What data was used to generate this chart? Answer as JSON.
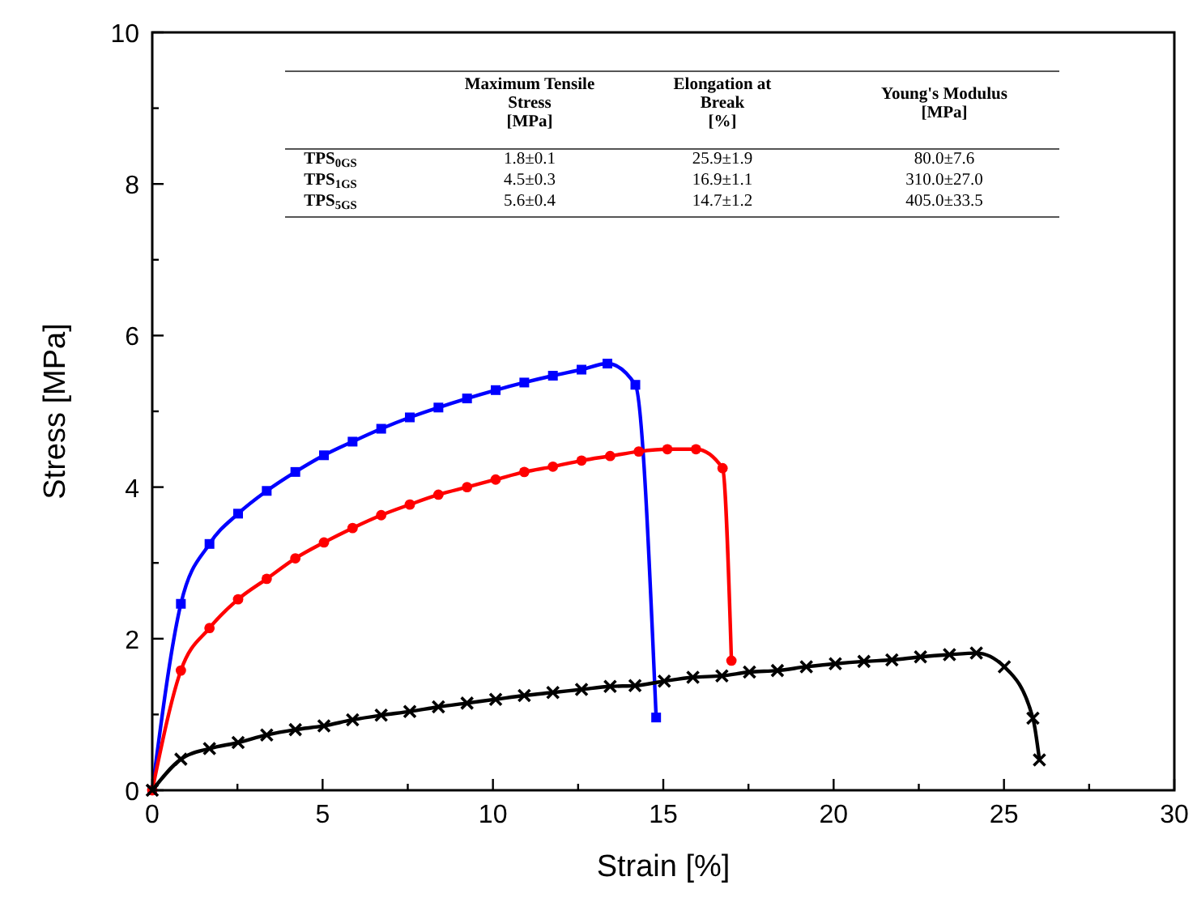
{
  "chart_data": {
    "type": "line",
    "xlabel": "Strain [%]",
    "ylabel": "Stress [MPa]",
    "xlim": [
      0,
      30
    ],
    "ylim": [
      0,
      10
    ],
    "xticks": [
      0,
      {
        "value": 2.5,
        "label": null
      },
      5,
      {
        "value": 7.5,
        "label": null
      },
      10,
      {
        "value": 12.5,
        "label": null
      },
      15,
      {
        "value": 17.5,
        "label": null
      },
      20,
      {
        "value": 22.5,
        "label": null
      },
      25,
      {
        "value": 27.5,
        "label": null
      },
      30
    ],
    "yticks": [
      0,
      {
        "value": 1,
        "label": null
      },
      2,
      {
        "value": 3,
        "label": null
      },
      4,
      {
        "value": 5,
        "label": null
      },
      6,
      {
        "value": 7,
        "label": null
      },
      8,
      {
        "value": 9,
        "label": null
      },
      10
    ],
    "grid": false,
    "line_style": "solid",
    "series": [
      {
        "color": "#0000ff",
        "marker": "square",
        "x": [
          0,
          0.84,
          1.68,
          2.52,
          3.36,
          4.2,
          5.04,
          5.88,
          6.72,
          7.56,
          8.4,
          9.24,
          10.08,
          10.92,
          11.76,
          12.6,
          13.36,
          14.18,
          14.79
        ],
        "values": [
          0,
          2.46,
          3.25,
          3.65,
          3.95,
          4.2,
          4.42,
          4.6,
          4.77,
          4.92,
          5.05,
          5.17,
          5.28,
          5.38,
          5.47,
          5.55,
          5.63,
          5.35,
          0.96
        ]
      },
      {
        "color": "#ff0000",
        "marker": "circle",
        "x": [
          0,
          0.84,
          1.68,
          2.52,
          3.36,
          4.2,
          5.04,
          5.88,
          6.72,
          7.56,
          8.4,
          9.24,
          10.08,
          10.92,
          11.76,
          12.6,
          13.44,
          14.28,
          15.12,
          15.96,
          16.74,
          17.0
        ],
        "values": [
          0,
          1.58,
          2.14,
          2.52,
          2.79,
          3.06,
          3.27,
          3.46,
          3.63,
          3.77,
          3.9,
          4.0,
          4.1,
          4.2,
          4.27,
          4.35,
          4.41,
          4.47,
          4.5,
          4.5,
          4.25,
          1.71
        ]
      },
      {
        "color": "#000000",
        "marker": "cross",
        "x": [
          0,
          0.84,
          1.68,
          2.52,
          3.36,
          4.2,
          5.04,
          5.88,
          6.72,
          7.56,
          8.4,
          9.24,
          10.08,
          10.92,
          11.76,
          12.6,
          13.44,
          14.17,
          15.03,
          15.87,
          16.72,
          17.53,
          18.35,
          19.2,
          20.05,
          20.89,
          21.71,
          22.55,
          23.4,
          24.19,
          25.01,
          25.85,
          26.04
        ],
        "values": [
          0,
          0.41,
          0.55,
          0.63,
          0.73,
          0.8,
          0.85,
          0.93,
          0.99,
          1.04,
          1.1,
          1.15,
          1.2,
          1.25,
          1.29,
          1.33,
          1.37,
          1.38,
          1.44,
          1.49,
          1.51,
          1.56,
          1.58,
          1.63,
          1.67,
          1.7,
          1.72,
          1.76,
          1.79,
          1.81,
          1.63,
          0.95,
          0.4
        ]
      }
    ],
    "annotations": [
      "Maximum Tensile\nStress\n[MPa]",
      "Elongation at\nBreak\n[%]",
      "Young's Modulus\n[MPa]",
      "TPS$_{0GS}$",
      "1.8±0.1",
      "25.9±1.9",
      "80.0±7.6",
      "TPS$_{1GS}$",
      "4.5±0.3",
      "16.9±1.1",
      "310.0±27.0",
      "TPS$_{5GS}$",
      "5.6±0.4",
      "14.7±1.2",
      "405.0±33.5"
    ]
  }
}
